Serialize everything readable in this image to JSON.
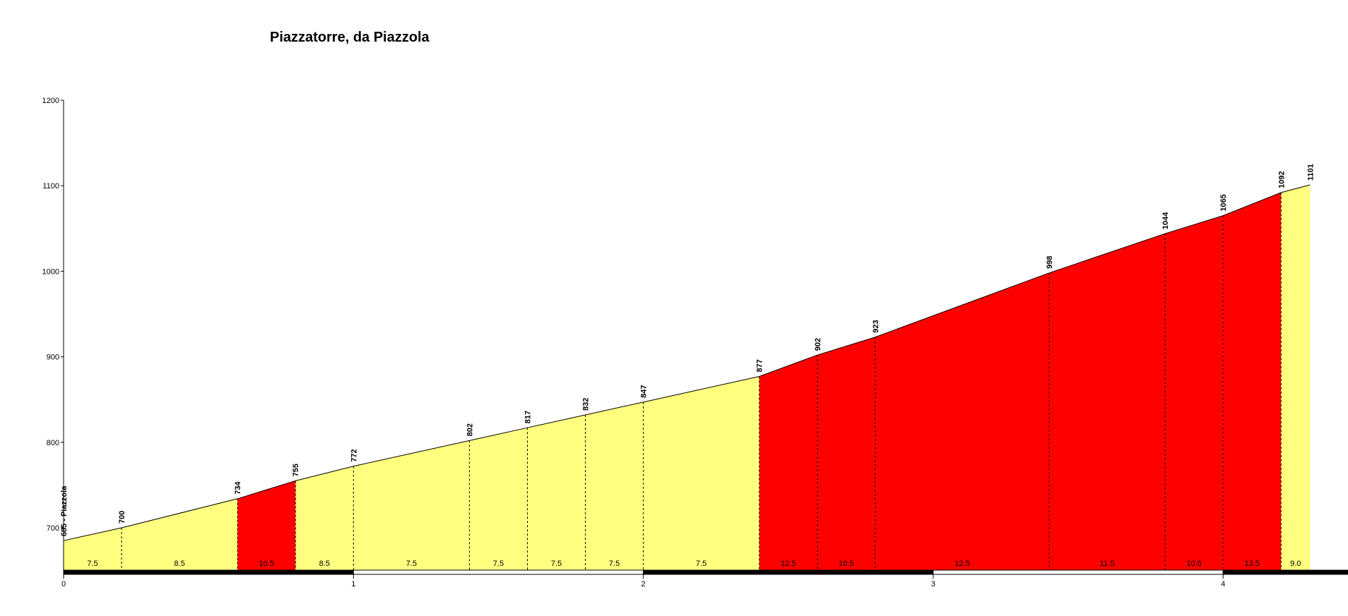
{
  "chart_data": {
    "type": "area",
    "title": "Piazzatorre, da Piazzola",
    "xlabel": "",
    "ylabel": "",
    "xlim": [
      0,
      4.4
    ],
    "ylim": [
      650,
      1200
    ],
    "x_ticks": [
      0,
      1,
      2,
      3,
      4
    ],
    "y_ticks": [
      700,
      800,
      900,
      1000,
      1100,
      1200
    ],
    "points": [
      {
        "x": 0.0,
        "y": 685,
        "label": "685 - Piazzola"
      },
      {
        "x": 0.2,
        "y": 700,
        "label": "700"
      },
      {
        "x": 0.6,
        "y": 734,
        "label": "734"
      },
      {
        "x": 0.8,
        "y": 755,
        "label": "755"
      },
      {
        "x": 1.0,
        "y": 772,
        "label": "772"
      },
      {
        "x": 1.4,
        "y": 802,
        "label": "802"
      },
      {
        "x": 1.6,
        "y": 817,
        "label": "817"
      },
      {
        "x": 1.8,
        "y": 832,
        "label": "832"
      },
      {
        "x": 2.0,
        "y": 847,
        "label": "847"
      },
      {
        "x": 2.4,
        "y": 877,
        "label": "877"
      },
      {
        "x": 2.6,
        "y": 902,
        "label": "902"
      },
      {
        "x": 2.8,
        "y": 923,
        "label": "923"
      },
      {
        "x": 3.4,
        "y": 998,
        "label": "998"
      },
      {
        "x": 3.8,
        "y": 1044,
        "label": "1044"
      },
      {
        "x": 4.0,
        "y": 1065,
        "label": "1065"
      },
      {
        "x": 4.2,
        "y": 1092,
        "label": "1092"
      },
      {
        "x": 4.3,
        "y": 1101,
        "label": "1101"
      }
    ],
    "segments": [
      {
        "from": 0.0,
        "to": 0.2,
        "gradient": "7.5",
        "color": "#FFFF80"
      },
      {
        "from": 0.2,
        "to": 0.6,
        "gradient": "8.5",
        "color": "#FFFF80"
      },
      {
        "from": 0.6,
        "to": 0.8,
        "gradient": "10.5",
        "color": "#FF0000"
      },
      {
        "from": 0.8,
        "to": 1.0,
        "gradient": "8.5",
        "color": "#FFFF80"
      },
      {
        "from": 1.0,
        "to": 1.4,
        "gradient": "7.5",
        "color": "#FFFF80"
      },
      {
        "from": 1.4,
        "to": 1.6,
        "gradient": "7.5",
        "color": "#FFFF80"
      },
      {
        "from": 1.6,
        "to": 1.8,
        "gradient": "7.5",
        "color": "#FFFF80"
      },
      {
        "from": 1.8,
        "to": 2.0,
        "gradient": "7.5",
        "color": "#FFFF80"
      },
      {
        "from": 2.0,
        "to": 2.4,
        "gradient": "7.5",
        "color": "#FFFF80"
      },
      {
        "from": 2.4,
        "to": 2.6,
        "gradient": "12.5",
        "color": "#FF0000"
      },
      {
        "from": 2.6,
        "to": 2.8,
        "gradient": "10.5",
        "color": "#FF0000"
      },
      {
        "from": 2.8,
        "to": 3.4,
        "gradient": "12.5",
        "color": "#FF0000"
      },
      {
        "from": 3.4,
        "to": 3.8,
        "gradient": "11.5",
        "color": "#FF0000"
      },
      {
        "from": 3.8,
        "to": 4.0,
        "gradient": "10.5",
        "color": "#FF0000"
      },
      {
        "from": 4.0,
        "to": 4.2,
        "gradient": "13.5",
        "color": "#FF0000"
      },
      {
        "from": 4.2,
        "to": 4.3,
        "gradient": "9.0",
        "color": "#FFFF80"
      }
    ],
    "grid": false,
    "legend": "none"
  }
}
